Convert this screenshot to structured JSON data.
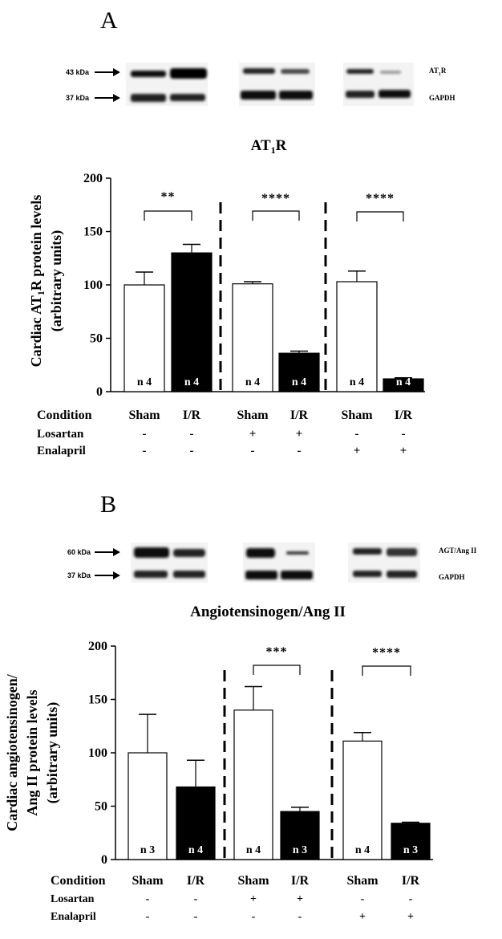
{
  "panels": [
    {
      "letter": "A",
      "blot": {
        "markers": [
          "43 kDa",
          "37 kDa"
        ],
        "protein_label_main": "AT",
        "protein_label_sub": "1",
        "protein_label_end": "R",
        "control_label": "GAPDH"
      },
      "chart_data": {
        "type": "bar",
        "title_main": "AT",
        "title_sub": "1",
        "title_end": "R",
        "ylabel_line1_main": "Cardiac AT",
        "ylabel_line1_sub": "1",
        "ylabel_line1_end": "R protein levels",
        "ylabel_line2": "(arbitrary units)",
        "ylabel_line3": "",
        "ylim": [
          0,
          200
        ],
        "yticks": [
          0,
          50,
          100,
          150,
          200
        ],
        "bars": [
          {
            "condition": "Sham",
            "value": 100,
            "error": 12,
            "n": "n 4",
            "fill": "#ffffff"
          },
          {
            "condition": "I/R",
            "value": 130,
            "error": 8,
            "n": "n 4",
            "fill": "#000000"
          },
          {
            "condition": "Sham",
            "value": 101,
            "error": 2,
            "n": "n 4",
            "fill": "#ffffff"
          },
          {
            "condition": "I/R",
            "value": 36,
            "error": 2,
            "n": "n 4",
            "fill": "#000000"
          },
          {
            "condition": "Sham",
            "value": 103,
            "error": 10,
            "n": "n 4",
            "fill": "#ffffff"
          },
          {
            "condition": "I/R",
            "value": 12,
            "error": 1,
            "n": "n 4",
            "fill": "#000000"
          }
        ],
        "significance": [
          "**",
          "****",
          "****"
        ],
        "rows": [
          {
            "label": "Condition",
            "values": [
              "Sham",
              "I/R",
              "Sham",
              "I/R",
              "Sham",
              "I/R"
            ]
          },
          {
            "label": "Losartan",
            "values": [
              "-",
              "-",
              "+",
              "+",
              "-",
              "-"
            ]
          },
          {
            "label": "Enalapril",
            "values": [
              "-",
              "-",
              "-",
              "-",
              "+",
              "+"
            ]
          }
        ]
      }
    },
    {
      "letter": "B",
      "blot": {
        "markers": [
          "60 kDa",
          "37 kDa"
        ],
        "protein_label_main": "AGT/Ang II",
        "protein_label_sub": "",
        "protein_label_end": "",
        "control_label": "GAPDH"
      },
      "chart_data": {
        "type": "bar",
        "title_main": "Angiotensinogen/Ang II",
        "title_sub": "",
        "title_end": "",
        "ylabel_line1_main": "Cardiac angiotensinogen/",
        "ylabel_line1_sub": "",
        "ylabel_line1_end": "",
        "ylabel_line2": "Ang II protein levels",
        "ylabel_line3": "(arbitrary units)",
        "ylim": [
          0,
          200
        ],
        "yticks": [
          0,
          50,
          100,
          150,
          200
        ],
        "bars": [
          {
            "condition": "Sham",
            "value": 100,
            "error": 36,
            "n": "n 3",
            "fill": "#ffffff"
          },
          {
            "condition": "I/R",
            "value": 68,
            "error": 25,
            "n": "n 4",
            "fill": "#000000"
          },
          {
            "condition": "Sham",
            "value": 140,
            "error": 22,
            "n": "n 4",
            "fill": "#ffffff"
          },
          {
            "condition": "I/R",
            "value": 45,
            "error": 4,
            "n": "n 3",
            "fill": "#000000"
          },
          {
            "condition": "Sham",
            "value": 111,
            "error": 8,
            "n": "n 4",
            "fill": "#ffffff"
          },
          {
            "condition": "I/R",
            "value": 34,
            "error": 1,
            "n": "n 3",
            "fill": "#000000"
          }
        ],
        "significance": [
          "",
          "***",
          "****"
        ],
        "rows": [
          {
            "label": "Condition",
            "values": [
              "Sham",
              "I/R",
              "Sham",
              "I/R",
              "Sham",
              "I/R"
            ]
          },
          {
            "label": "Losartan",
            "values": [
              "-",
              "-",
              "+",
              "+",
              "-",
              "-"
            ]
          },
          {
            "label": "Enalapril",
            "values": [
              "-",
              "-",
              "-",
              "-",
              "+",
              "+"
            ]
          }
        ]
      }
    }
  ]
}
